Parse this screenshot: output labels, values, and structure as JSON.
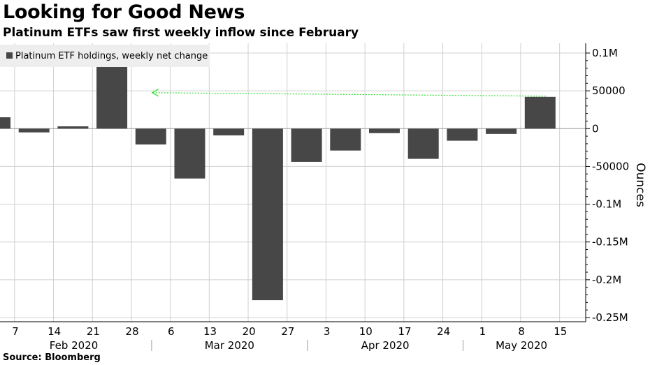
{
  "header": {
    "title": "Looking for Good News",
    "subtitle": "Platinum ETFs saw first weekly inflow since February"
  },
  "footer": {
    "source": "Source: Bloomberg"
  },
  "colors": {
    "bar": "#474747",
    "grid": "#d0d0d0",
    "arrow": "#33dd33"
  },
  "chart_data": {
    "type": "bar",
    "categories": [
      "7",
      "14",
      "21",
      "28",
      "6",
      "13",
      "20",
      "27",
      "3",
      "10",
      "17",
      "24",
      "1",
      "8",
      "15"
    ],
    "month_groups": [
      {
        "label": "Feb 2020",
        "start": 0,
        "end": 3
      },
      {
        "label": "Mar 2020",
        "start": 4,
        "end": 7
      },
      {
        "label": "Apr 2020",
        "start": 8,
        "end": 11
      },
      {
        "label": "May 2020",
        "start": 12,
        "end": 14
      }
    ],
    "series": [
      {
        "name": "Platinum ETF holdings, weekly net change",
        "values": [
          15000,
          -5000,
          3000,
          82000,
          -21000,
          -66000,
          -9000,
          -227000,
          -44000,
          -29000,
          -6000,
          -40000,
          -16000,
          -7000,
          42000
        ]
      }
    ],
    "ylabel": "Ounces",
    "ylim": [
      -250000,
      100000
    ],
    "yticks": [
      {
        "value": 100000,
        "label": "0.1M"
      },
      {
        "value": 50000,
        "label": "50000"
      },
      {
        "value": 0,
        "label": "0"
      },
      {
        "value": -50000,
        "label": "-50000"
      },
      {
        "value": -100000,
        "label": "-0.1M"
      },
      {
        "value": -150000,
        "label": "-0.15M"
      },
      {
        "value": -200000,
        "label": "-0.2M"
      },
      {
        "value": -250000,
        "label": "-0.25M"
      }
    ],
    "grid": true,
    "legend_position": "top-left",
    "annotation": {
      "type": "dotted-arrow",
      "from_index": 14,
      "to_index": 4,
      "value": 42000
    }
  }
}
